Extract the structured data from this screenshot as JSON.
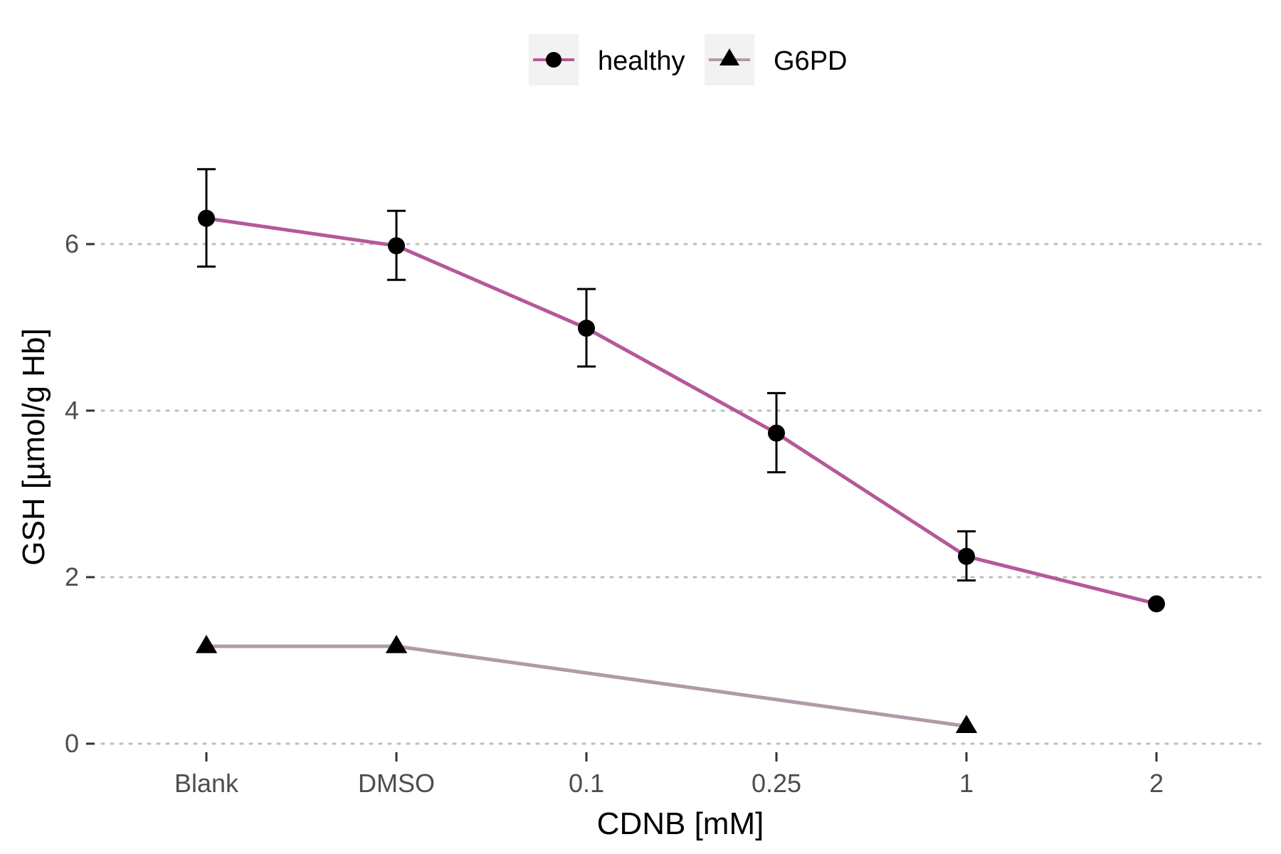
{
  "chart_data": {
    "type": "line",
    "categories": [
      "Blank",
      "DMSO",
      "0.1",
      "0.25",
      "1",
      "2"
    ],
    "xlabel": "CDNB [mM]",
    "ylabel": "GSH [µmol/g Hb]",
    "ylim": [
      -0.3,
      7.0
    ],
    "yticks": [
      0,
      2,
      4,
      6
    ],
    "yticklabels": [
      "0",
      "2",
      "4",
      "6"
    ],
    "grid": "horizontal dotted at major y ticks",
    "legend_position": "top",
    "series": [
      {
        "name": "healthy",
        "marker": "circle",
        "color": "#b5589a",
        "values": [
          6.31,
          5.98,
          4.99,
          3.73,
          2.25,
          1.68
        ],
        "error_low": [
          5.73,
          5.57,
          4.53,
          3.26,
          1.96,
          null
        ],
        "error_high": [
          6.9,
          6.4,
          5.46,
          4.21,
          2.55,
          null
        ]
      },
      {
        "name": "G6PD",
        "marker": "triangle",
        "color": "#b09aa9",
        "values": [
          1.17,
          1.17,
          null,
          null,
          0.21,
          null
        ]
      }
    ]
  }
}
